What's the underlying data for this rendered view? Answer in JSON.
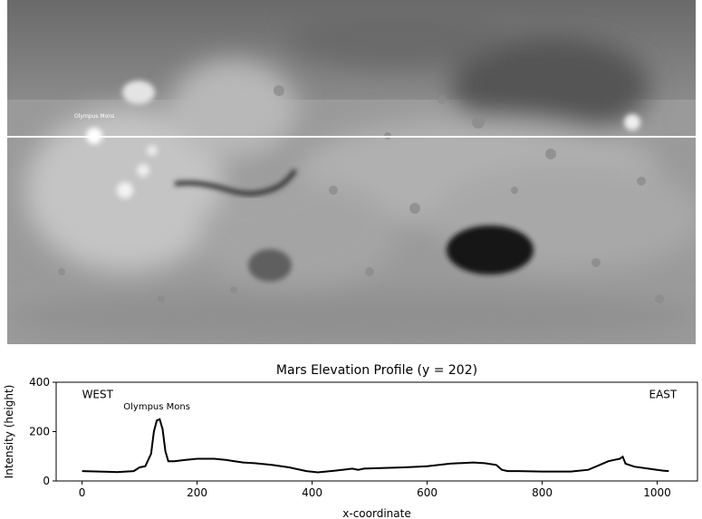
{
  "map": {
    "marker_label": "Olympus Mons",
    "profile_line_color": "#ffffff"
  },
  "chart_data": {
    "type": "line",
    "title": "Mars Elevation Profile (y = 202)",
    "xlabel": "x-coordinate",
    "ylabel": "Intensity (height)",
    "xlim": [
      -45,
      1070
    ],
    "ylim": [
      0,
      400
    ],
    "xticks": [
      0,
      200,
      400,
      600,
      800,
      1000
    ],
    "yticks": [
      0,
      200,
      400
    ],
    "grid": false,
    "line_color": "#000000",
    "annotations": [
      {
        "text": "WEST",
        "x": 0,
        "y": 335
      },
      {
        "text": "Olympus Mons",
        "x": 130,
        "y": 290
      },
      {
        "text": "EAST",
        "x": 1010,
        "y": 335
      }
    ],
    "series": [
      {
        "x": [
          0,
          30,
          60,
          90,
          100,
          110,
          120,
          125,
          130,
          135,
          140,
          145,
          150,
          160,
          180,
          200,
          230,
          250,
          280,
          300,
          330,
          360,
          390,
          410,
          440,
          470,
          480,
          490,
          520,
          560,
          600,
          640,
          680,
          700,
          720,
          730,
          740,
          760,
          800,
          850,
          880,
          900,
          915,
          925,
          935,
          940,
          945,
          960,
          990,
          1010,
          1020
        ],
        "y": [
          40,
          38,
          36,
          40,
          55,
          60,
          110,
          200,
          245,
          250,
          210,
          120,
          80,
          80,
          85,
          90,
          90,
          85,
          75,
          72,
          65,
          55,
          40,
          35,
          42,
          50,
          45,
          50,
          52,
          55,
          60,
          70,
          75,
          72,
          65,
          45,
          40,
          40,
          38,
          38,
          45,
          65,
          80,
          85,
          90,
          98,
          70,
          58,
          48,
          42,
          40
        ]
      }
    ]
  }
}
